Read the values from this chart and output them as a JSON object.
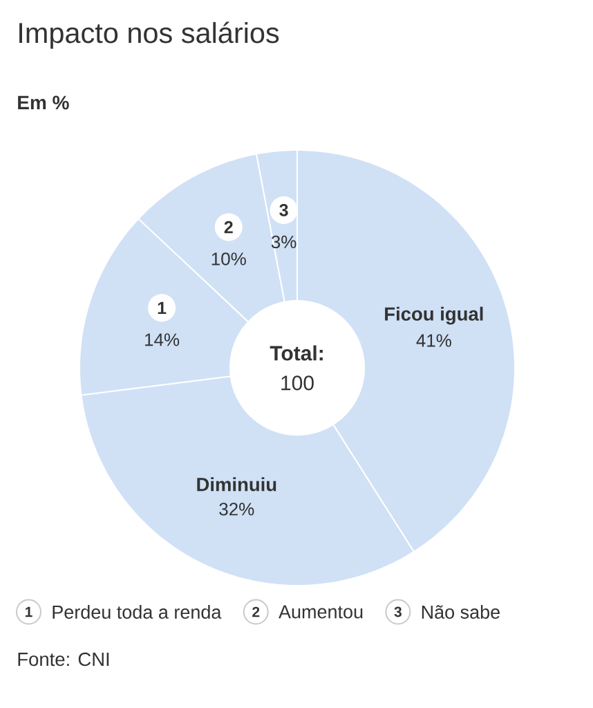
{
  "chart_data": {
    "type": "donut",
    "title": "Impacto nos salários",
    "subtitle": "Em %",
    "categories": [
      "Ficou igual",
      "Diminuiu",
      "1",
      "2",
      "3"
    ],
    "values": [
      41,
      32,
      14,
      10,
      3
    ],
    "value_labels": [
      "41%",
      "32%",
      "14%",
      "10%",
      "3%"
    ],
    "colors": [
      "#d0e1f6",
      "#d0e1f6",
      "#d0e1f6",
      "#d0e1f6",
      "#d0e1f6"
    ],
    "annotations": [
      "Perdeu toda a renda",
      "Aumentou",
      "Não sabe",
      "**Total:** 100",
      "Fonte: CNI"
    ]
  }
}
